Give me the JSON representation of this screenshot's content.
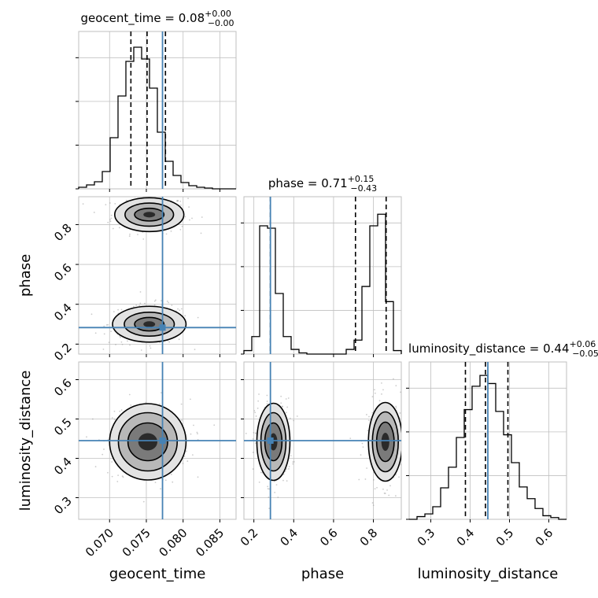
{
  "chart_data": {
    "type": "corner",
    "parameters": [
      "geocent_time",
      "phase",
      "luminosity_distance"
    ],
    "titles": [
      {
        "text": "geocent_time = 0.08",
        "sup": "+0.00",
        "sub": "−0.00"
      },
      {
        "text": "phase = 0.71",
        "sup": "+0.15",
        "sub": "−0.43"
      },
      {
        "text": "luminosity_distance = 0.44",
        "sup": "+0.06",
        "sub": "−0.05"
      }
    ],
    "axes": {
      "geocent_time": {
        "range": [
          0.0658,
          0.0872
        ],
        "ticks": [
          0.07,
          0.075,
          0.08,
          0.085
        ],
        "tick_labels": [
          "0.070",
          "0.075",
          "0.080",
          "0.085"
        ]
      },
      "phase": {
        "range": [
          0.15,
          0.94
        ],
        "ticks": [
          0.2,
          0.4,
          0.6,
          0.8
        ],
        "tick_labels": [
          "0.2",
          "0.4",
          "0.6",
          "0.8"
        ]
      },
      "luminosity_distance": {
        "range": [
          0.245,
          0.645
        ],
        "ticks": [
          0.3,
          0.4,
          0.5,
          0.6
        ],
        "tick_labels": [
          "0.3",
          "0.4",
          "0.5",
          "0.6"
        ]
      }
    },
    "truths": {
      "geocent_time": 0.0772,
      "phase": 0.283,
      "luminosity_distance": 0.445
    },
    "quantiles": {
      "geocent_time": [
        0.0729,
        0.0751,
        0.0776
      ],
      "phase": [
        0.283,
        0.71,
        0.864
      ],
      "luminosity_distance": [
        0.388,
        0.439,
        0.496
      ]
    },
    "histograms": {
      "geocent_time": {
        "edges": [
          0.0658,
          0.06687,
          0.06794,
          0.06901,
          0.07008,
          0.07115,
          0.07222,
          0.07329,
          0.07436,
          0.07543,
          0.0765,
          0.07757,
          0.07864,
          0.07971,
          0.08078,
          0.08185,
          0.08292,
          0.08399,
          0.08506,
          0.08613,
          0.0872
        ],
        "counts": [
          2,
          5,
          9,
          22,
          65,
          118,
          162,
          180,
          165,
          128,
          72,
          35,
          17,
          8,
          4,
          2,
          1,
          0,
          0,
          0
        ],
        "ymax": 200
      },
      "phase": {
        "edges": [
          0.15,
          0.1895,
          0.229,
          0.2685,
          0.308,
          0.3475,
          0.387,
          0.4265,
          0.466,
          0.5055,
          0.545,
          0.5845,
          0.624,
          0.6635,
          0.703,
          0.7425,
          0.782,
          0.8215,
          0.861,
          0.9005,
          0.94
        ],
        "counts": [
          3,
          15,
          110,
          108,
          52,
          15,
          4,
          1,
          0,
          0,
          0,
          0,
          0,
          4,
          12,
          58,
          110,
          120,
          45,
          3
        ],
        "ymax": 135
      },
      "luminosity_distance": {
        "edges": [
          0.245,
          0.265,
          0.285,
          0.305,
          0.325,
          0.345,
          0.365,
          0.385,
          0.405,
          0.425,
          0.445,
          0.465,
          0.485,
          0.505,
          0.525,
          0.545,
          0.565,
          0.585,
          0.605,
          0.625,
          0.645
        ],
        "counts": [
          0,
          3,
          6,
          14,
          35,
          58,
          91,
          122,
          148,
          160,
          151,
          120,
          94,
          63,
          36,
          23,
          12,
          4,
          2,
          0
        ],
        "ymax": 175
      }
    },
    "contours": {
      "geocent_time__phase": [
        {
          "cx": 0.0754,
          "cy": 0.85,
          "rx": [
            0.0047,
            0.0033,
            0.002,
            0.0008
          ],
          "ry": [
            0.085,
            0.058,
            0.032,
            0.014
          ]
        },
        {
          "cx": 0.0754,
          "cy": 0.3,
          "rx": [
            0.005,
            0.0034,
            0.002,
            0.0008
          ],
          "ry": [
            0.09,
            0.06,
            0.034,
            0.015
          ]
        }
      ],
      "geocent_time__luminosity_distance": [
        {
          "cx": 0.0752,
          "cy": 0.442,
          "rx": [
            0.0052,
            0.004,
            0.0027,
            0.0013
          ],
          "ry": [
            0.097,
            0.074,
            0.048,
            0.022
          ]
        }
      ],
      "phase__luminosity_distance": [
        {
          "cx": 0.298,
          "cy": 0.442,
          "rx": [
            0.083,
            0.063,
            0.043,
            0.02
          ],
          "ry": [
            0.098,
            0.074,
            0.048,
            0.022
          ]
        },
        {
          "cx": 0.86,
          "cy": 0.442,
          "rx": [
            0.085,
            0.065,
            0.044,
            0.02
          ],
          "ry": [
            0.1,
            0.076,
            0.05,
            0.023
          ]
        }
      ]
    },
    "colors": {
      "truth": "#4682b4",
      "contour": "#000000",
      "grid": "#c0c0c0",
      "points": "#9a9a9a"
    },
    "grid": true
  }
}
